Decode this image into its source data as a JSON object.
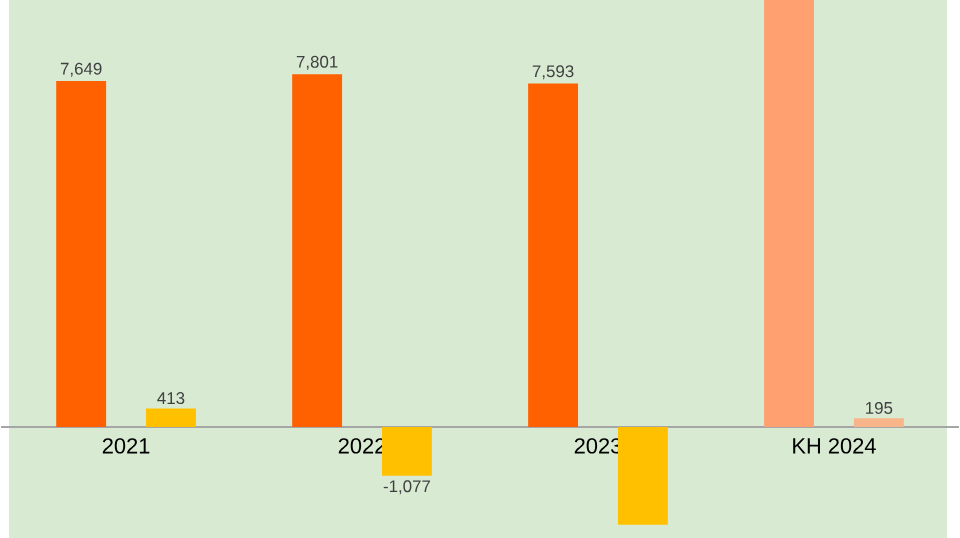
{
  "chart_data": {
    "type": "bar",
    "categories": [
      "2021",
      "2022",
      "2023",
      "KH 2024"
    ],
    "series": [
      {
        "colors": [
          "#ff6000",
          "#ff6000",
          "#ff6000",
          "#ffa070"
        ],
        "values": [
          7649,
          7801,
          7593,
          9440
        ],
        "value_labels": [
          "7,649",
          "7,801",
          "7,593",
          null
        ]
      },
      {
        "colors": [
          "#ffc000",
          "#ffc000",
          "#ffc000",
          "#f8b58a"
        ],
        "values": [
          413,
          -1077,
          -2160,
          195
        ],
        "value_labels": [
          "413",
          "-1,077",
          null,
          "195"
        ]
      }
    ],
    "ylim": [
      -2470,
      9440
    ],
    "tick_labels": "x",
    "grid": false
  }
}
